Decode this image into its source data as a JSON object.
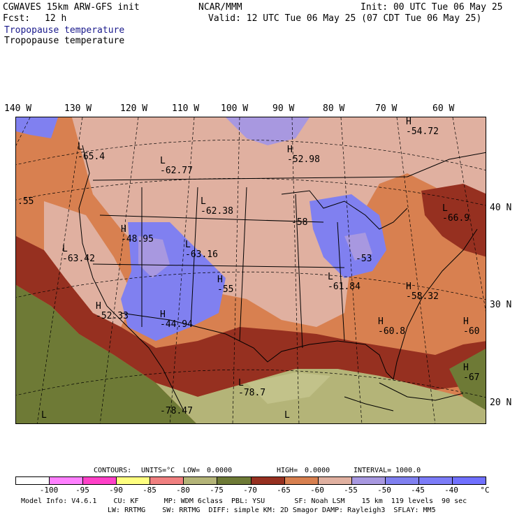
{
  "header": {
    "model": "CGWAVES 15km ARW-GFS init",
    "org": "NCAR/MMM",
    "init": "Init: 00 UTC Tue 06 May 25",
    "fcst_label": "Fcst:",
    "fcst_value": "12 h",
    "valid": "Valid: 12 UTC Tue 06 May 25 (07 CDT Tue 06 May 25)",
    "field_title_1": "Tropopause temperature",
    "field_title_2": "Tropopause temperature"
  },
  "longitudes": [
    "140 W",
    "130 W",
    "120 W",
    "110 W",
    "100 W",
    "90 W",
    "80 W",
    "70 W",
    "60 W"
  ],
  "latitudes": [
    "40 N",
    "30 N",
    "20 N"
  ],
  "map_labels": [
    {
      "text": "H",
      "v": "-54.72"
    },
    {
      "text": "L",
      "v": "-65.4"
    },
    {
      "text": "L",
      "v": "-62.77"
    },
    {
      "text": "H",
      "v": "-52.98"
    },
    {
      "text": "",
      "v": ".55"
    },
    {
      "text": "L",
      "v": "-62.38"
    },
    {
      "text": "L",
      "v": "-66.9"
    },
    {
      "text": "",
      "v": "-58"
    },
    {
      "text": "H",
      "v": "-48.95"
    },
    {
      "text": "L",
      "v": "-63.16"
    },
    {
      "text": "L",
      "v": "-63.42"
    },
    {
      "text": "",
      "v": "-53"
    },
    {
      "text": "H",
      "v": "-55"
    },
    {
      "text": "L",
      "v": "-61.84"
    },
    {
      "text": "H",
      "v": "-58.32"
    },
    {
      "text": "H",
      "v": "-52.33"
    },
    {
      "text": "H",
      "v": "-44.94"
    },
    {
      "text": "H",
      "v": "-60.8"
    },
    {
      "text": "H",
      "v": "-60"
    },
    {
      "text": "H",
      "v": "-67"
    },
    {
      "text": "L",
      "v": "-78.7"
    },
    {
      "text": "",
      "v": "-78.47"
    },
    {
      "text": "L",
      "v": ""
    },
    {
      "text": "L",
      "v": ""
    }
  ],
  "contours": {
    "contours_label": "CONTOURS:",
    "units_label": "UNITS=°C",
    "low_label": "LOW=",
    "low_value": "0.0000",
    "high_label": "HIGH=",
    "high_value": "0.0000",
    "interval_label": "INTERVAL=",
    "interval_value": "1000.0"
  },
  "colorbar": {
    "colors": [
      "#ffffff",
      "#ff80ff",
      "#ff40c8",
      "#ffff80",
      "#f08080",
      "#b4b478",
      "#6e7a36",
      "#963020",
      "#d88050",
      "#e0b0a0",
      "#a898e0",
      "#8080f0",
      "#7c7cf8",
      "#7070ff"
    ],
    "ticks": [
      "-100",
      "-95",
      "-90",
      "-85",
      "-80",
      "-75",
      "-70",
      "-65",
      "-60",
      "-55",
      "-50",
      "-45",
      "-40"
    ],
    "unit": "°C"
  },
  "footer": {
    "line1": "Model Info: V4.6.1    CU: KF      MP: WDM 6class  PBL: YSU       SF: Noah LSM    15 km  119 levels  90 sec",
    "line2": "LW: RRTMG    SW: RRTMG  DIFF: simple KM: 2D Smagor DAMP: Rayleigh3  SFLAY: MM5"
  }
}
